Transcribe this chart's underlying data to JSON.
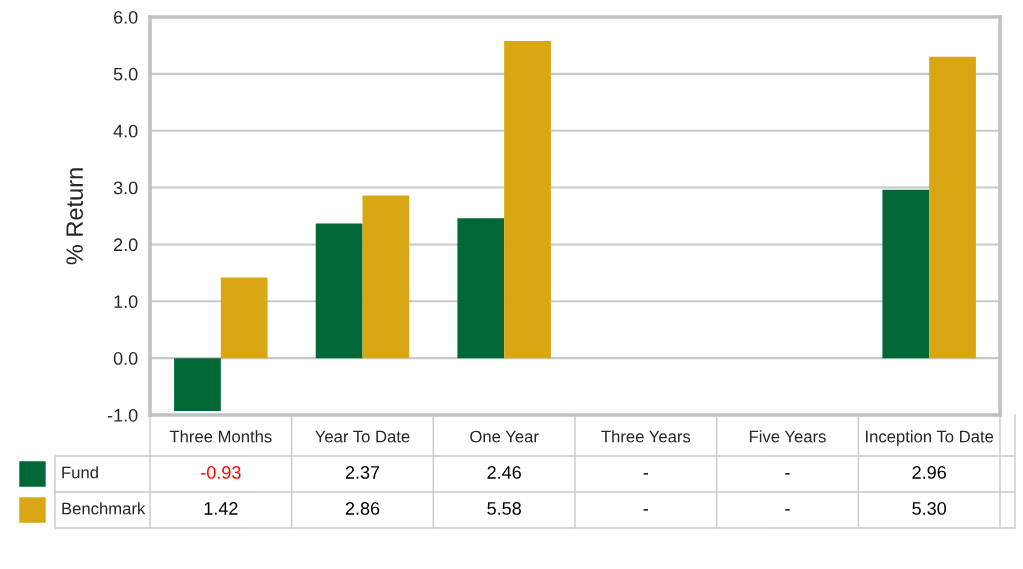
{
  "chart_data": {
    "type": "bar",
    "ylabel": "% Return",
    "categories": [
      "Three Months",
      "Year To Date",
      "One Year",
      "Three Years",
      "Five Years",
      "Inception To Date"
    ],
    "series": [
      {
        "name": "Fund",
        "color": "#006837",
        "values": [
          -0.93,
          2.37,
          2.46,
          null,
          null,
          2.96
        ],
        "value_labels": [
          "-0.93",
          "2.37",
          "2.46",
          "-",
          "-",
          "2.96"
        ]
      },
      {
        "name": "Benchmark",
        "color": "#d9a714",
        "values": [
          1.42,
          2.86,
          5.58,
          null,
          null,
          5.3
        ],
        "value_labels": [
          "1.42",
          "2.86",
          "5.58",
          "-",
          "-",
          "5.30"
        ]
      }
    ],
    "ylim": [
      -1.0,
      6.0
    ],
    "yticks": [
      {
        "value": -1,
        "label": "-1.0"
      },
      {
        "value": 0,
        "label": "0.0"
      },
      {
        "value": 1,
        "label": "1.0"
      },
      {
        "value": 2,
        "label": "2.0"
      },
      {
        "value": 3,
        "label": "3.0"
      },
      {
        "value": 4,
        "label": "4.0"
      },
      {
        "value": 5,
        "label": "5.0"
      },
      {
        "value": 6,
        "label": "6.0"
      }
    ],
    "grid": "y",
    "legend": "bottom left"
  }
}
